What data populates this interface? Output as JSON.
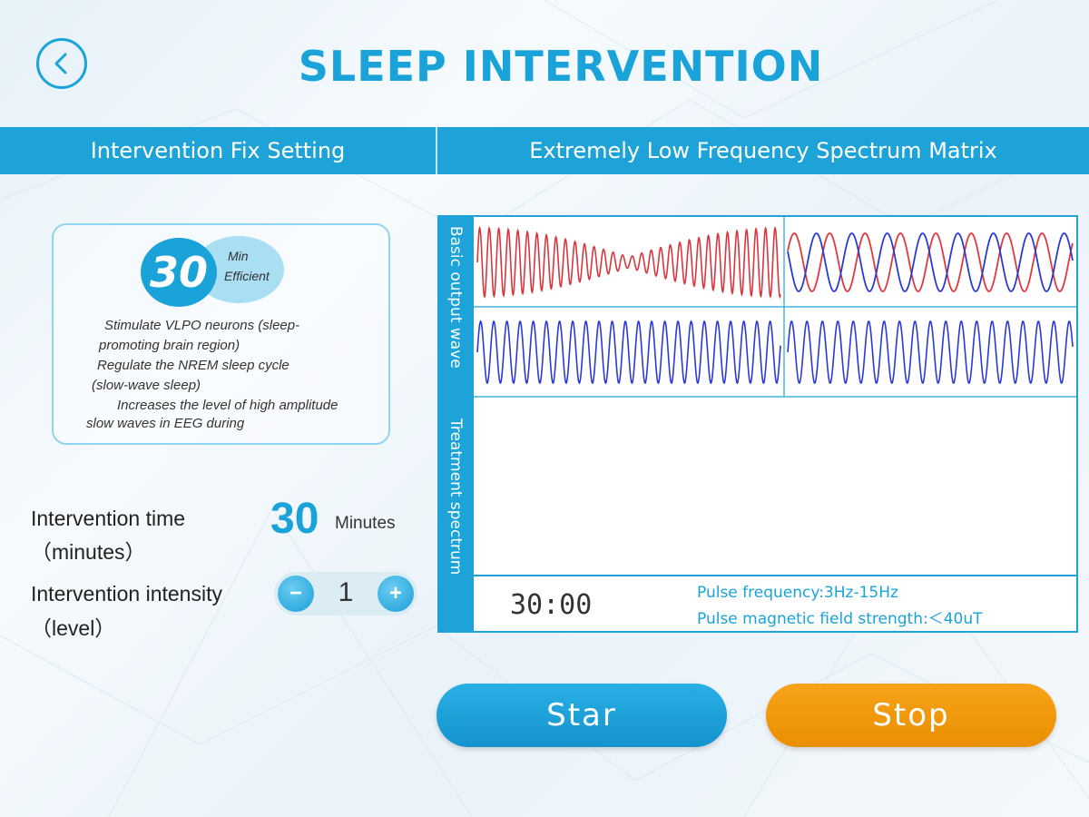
{
  "header": {
    "title": "SLEEP INTERVENTION",
    "left_section": "Intervention Fix Setting",
    "right_section": "Extremely Low Frequency Spectrum Matrix"
  },
  "info_card": {
    "badge_number": "30",
    "badge_unit": "Min",
    "badge_caption": "Efficient",
    "lines": [
      "Stimulate VLPO neurons (sleep-",
      "promoting brain region)",
      "Regulate the NREM sleep cycle",
      "(slow-wave sleep)",
      "Increases the level of high amplitude",
      "slow waves in EEG during"
    ]
  },
  "settings": {
    "time_label_1": "Intervention time",
    "time_label_2": "（minutes）",
    "time_value": "30",
    "time_unit": "Minutes",
    "intensity_label_1": "Intervention intensity",
    "intensity_label_2": "（level）",
    "intensity_value": "1",
    "minus_symbol": "−",
    "plus_symbol": "+"
  },
  "spectrum": {
    "basic_label": "Basic output wave",
    "treatment_label": "Treatment spectrum",
    "timer": "30:00",
    "pulse_frequency": "Pulse frequency:3Hz-15Hz",
    "pulse_strength": "Pulse magnetic field strength:＜40uT",
    "colors": {
      "red_wave": "#d9363e",
      "blue_wave": "#2a3ad6",
      "accent": "#1ea3d8"
    }
  },
  "actions": {
    "start_label": "Star",
    "stop_label": "Stop"
  },
  "icons": {
    "back": "chevron-left-icon"
  }
}
